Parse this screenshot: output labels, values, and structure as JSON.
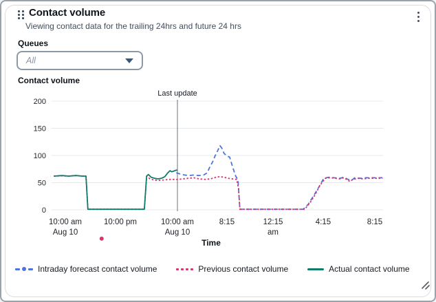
{
  "widget": {
    "title": "Contact volume",
    "subtitle": "Viewing contact data for the trailing 24hrs and future 24 hrs",
    "queues_label": "Queues",
    "queues_value": "All",
    "chart_label": "Contact volume"
  },
  "colors": {
    "forecast_blue": "#4f74d9",
    "previous_pink": "#d6386e",
    "actual_teal": "#0d7c6c",
    "annotation_line": "#687078",
    "gridline": "#e4e8ec"
  },
  "chart_data": {
    "type": "line",
    "title": "Contact volume",
    "xlabel": "Time",
    "ylabel": "",
    "ylim": [
      0,
      200
    ],
    "yticks": [
      0,
      50,
      100,
      150,
      200
    ],
    "grid": "horizontal",
    "legend_position": "bottom",
    "x_ticks": [
      {
        "lines": [
          "10:00 am",
          "Aug 10"
        ]
      },
      {
        "lines": [
          "10:00 pm"
        ]
      },
      {
        "lines": [
          "10:00 am",
          "Aug 10"
        ]
      },
      {
        "lines": [
          "8:15"
        ]
      },
      {
        "lines": [
          "12:15",
          "am"
        ]
      },
      {
        "lines": [
          "4:15"
        ]
      },
      {
        "lines": [
          "8:15"
        ]
      }
    ],
    "annotation": {
      "label": "Last update",
      "x": 2.0
    },
    "stray_point": {
      "series": "Previous contact volume",
      "x": 0.66,
      "y": -53
    },
    "series": [
      {
        "name": "Intraday forecast contact volume",
        "style": "dashed",
        "color": "#4f74d9",
        "points": [
          [
            1.98,
            68
          ],
          [
            2.06,
            66
          ],
          [
            2.14,
            64
          ],
          [
            2.24,
            63
          ],
          [
            2.33,
            64
          ],
          [
            2.43,
            63
          ],
          [
            2.53,
            64
          ],
          [
            2.6,
            68
          ],
          [
            2.65,
            78
          ],
          [
            2.71,
            88
          ],
          [
            2.76,
            99
          ],
          [
            2.82,
            110
          ],
          [
            2.86,
            118
          ],
          [
            2.9,
            113
          ],
          [
            2.94,
            104
          ],
          [
            3.0,
            99
          ],
          [
            3.06,
            97
          ],
          [
            3.12,
            80
          ],
          [
            3.19,
            62
          ],
          [
            3.24,
            55
          ],
          [
            3.28,
            1
          ],
          [
            3.45,
            1
          ],
          [
            4.0,
            1
          ],
          [
            4.6,
            1
          ],
          [
            4.7,
            10
          ],
          [
            4.81,
            26
          ],
          [
            4.92,
            43
          ],
          [
            5.01,
            58
          ],
          [
            5.11,
            60
          ],
          [
            5.21,
            59
          ],
          [
            5.32,
            58
          ],
          [
            5.4,
            60
          ],
          [
            5.48,
            56
          ],
          [
            5.55,
            54
          ],
          [
            5.61,
            59
          ],
          [
            5.72,
            58
          ],
          [
            5.83,
            59
          ],
          [
            5.93,
            59
          ],
          [
            6.04,
            59
          ],
          [
            6.15,
            59
          ]
        ]
      },
      {
        "name": "Previous contact volume",
        "style": "dotted",
        "color": "#d6386e",
        "points": [
          [
            -0.21,
            62
          ],
          [
            -0.06,
            62.5
          ],
          [
            0.06,
            62
          ],
          [
            0.19,
            63
          ],
          [
            0.31,
            62
          ],
          [
            0.375,
            62
          ],
          [
            0.41,
            1
          ],
          [
            0.56,
            1
          ],
          [
            1.0,
            1
          ],
          [
            1.42,
            1
          ],
          [
            1.46,
            62
          ],
          [
            1.52,
            57
          ],
          [
            1.59,
            55
          ],
          [
            1.66,
            54
          ],
          [
            1.76,
            55
          ],
          [
            1.86,
            56
          ],
          [
            1.93,
            56
          ],
          [
            2.0,
            56
          ],
          [
            2.11,
            57
          ],
          [
            2.22,
            58
          ],
          [
            2.33,
            59
          ],
          [
            2.44,
            57
          ],
          [
            2.56,
            56
          ],
          [
            2.67,
            57
          ],
          [
            2.78,
            60
          ],
          [
            2.86,
            61
          ],
          [
            2.94,
            60
          ],
          [
            3.03,
            58
          ],
          [
            3.12,
            57
          ],
          [
            3.21,
            56
          ],
          [
            3.25,
            40
          ],
          [
            3.28,
            1
          ],
          [
            3.45,
            1
          ],
          [
            4.0,
            1
          ],
          [
            4.63,
            1
          ],
          [
            4.73,
            12
          ],
          [
            4.84,
            28
          ],
          [
            4.93,
            44
          ],
          [
            5.04,
            58
          ],
          [
            5.13,
            59
          ],
          [
            5.24,
            58
          ],
          [
            5.33,
            57
          ],
          [
            5.4,
            59
          ],
          [
            5.47,
            55
          ],
          [
            5.52,
            52
          ],
          [
            5.57,
            56
          ],
          [
            5.67,
            58
          ],
          [
            5.77,
            57
          ],
          [
            5.88,
            58
          ],
          [
            5.99,
            58
          ],
          [
            6.09,
            58
          ],
          [
            6.15,
            58
          ]
        ]
      },
      {
        "name": "Actual contact volume",
        "style": "solid",
        "color": "#0d7c6c",
        "points": [
          [
            -0.21,
            62
          ],
          [
            -0.06,
            63
          ],
          [
            0.06,
            62
          ],
          [
            0.19,
            63
          ],
          [
            0.31,
            62
          ],
          [
            0.375,
            62
          ],
          [
            0.41,
            1
          ],
          [
            0.56,
            1
          ],
          [
            1.0,
            1
          ],
          [
            1.42,
            1
          ],
          [
            1.46,
            62
          ],
          [
            1.49,
            65
          ],
          [
            1.54,
            60
          ],
          [
            1.6,
            58
          ],
          [
            1.66,
            57
          ],
          [
            1.72,
            58
          ],
          [
            1.78,
            61
          ],
          [
            1.83,
            68
          ],
          [
            1.87,
            72
          ],
          [
            1.9,
            70
          ],
          [
            1.93,
            71
          ],
          [
            1.98,
            73
          ],
          [
            2.0,
            73
          ]
        ]
      }
    ]
  }
}
